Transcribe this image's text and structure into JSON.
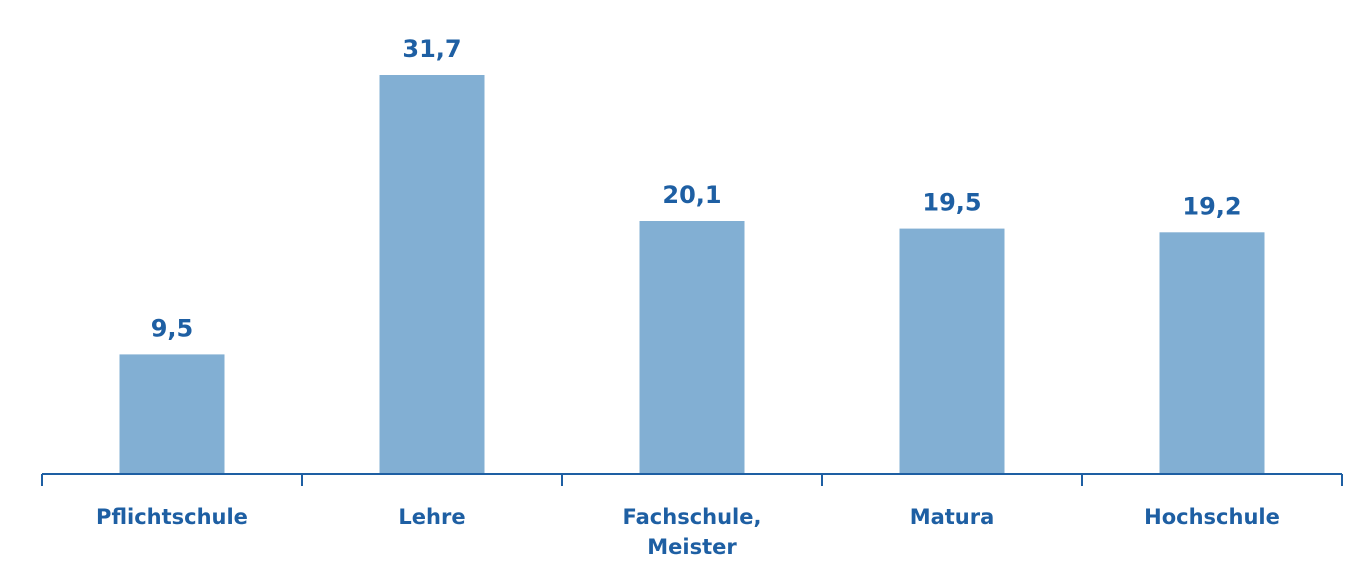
{
  "chart_data": {
    "type": "bar",
    "categories": [
      [
        "Pflichtschule"
      ],
      [
        "Lehre"
      ],
      [
        "Fachschule,",
        "Meister"
      ],
      [
        "Matura"
      ],
      [
        "Hochschule"
      ]
    ],
    "values": [
      9.5,
      31.7,
      20.1,
      19.5,
      19.2
    ],
    "value_labels": [
      "9,5",
      "31,7",
      "20,1",
      "19,5",
      "19,2"
    ],
    "title": "",
    "xlabel": "",
    "ylabel": "",
    "ylim": [
      0,
      31.7
    ],
    "grid": false,
    "legend": "none",
    "colors": {
      "bar": "#82afd3",
      "axis": "#1e5fa3",
      "label": "#1e5fa3"
    }
  }
}
